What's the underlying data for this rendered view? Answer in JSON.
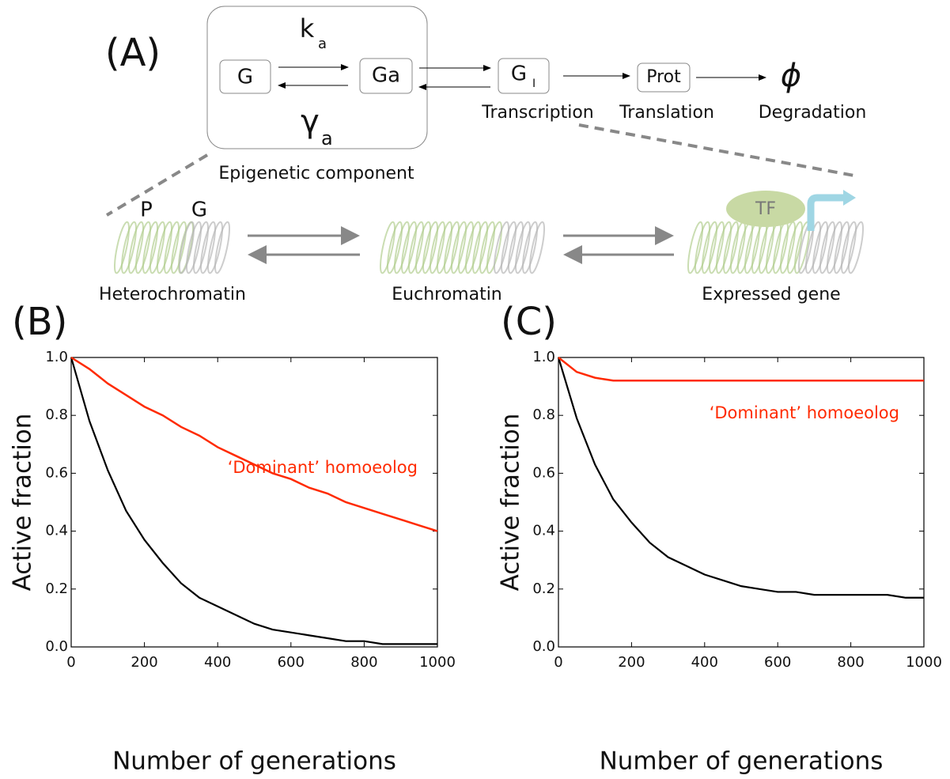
{
  "diagram": {
    "panel_label": "(A)",
    "box_label": "Epigenetic component",
    "rate_forward": {
      "symbol": "k",
      "subscript": "a"
    },
    "rate_backward": {
      "symbol": "γ",
      "subscript": "a"
    },
    "nodes": [
      {
        "label": "G"
      },
      {
        "label": "Ga"
      },
      {
        "label": "G",
        "subscript": "I"
      },
      {
        "label": "Prot"
      },
      {
        "label": "ϕ"
      }
    ],
    "steps": [
      "Transcription",
      "Translation",
      "Degradation"
    ],
    "chromatin_labels": [
      "P",
      "G"
    ],
    "tf_label": "TF",
    "states": [
      "Heterochromatin",
      "Euchromatin",
      "Expressed gene"
    ]
  },
  "chart_data": [
    {
      "type": "line",
      "panel_label": "(B)",
      "xlabel": "Number of generations",
      "ylabel": "Active fraction",
      "x": [
        0,
        50,
        100,
        150,
        200,
        250,
        300,
        350,
        400,
        450,
        500,
        550,
        600,
        650,
        700,
        750,
        800,
        850,
        900,
        950,
        1000
      ],
      "series": [
        {
          "color": "#000000",
          "values": [
            1.0,
            0.78,
            0.61,
            0.47,
            0.37,
            0.29,
            0.22,
            0.17,
            0.14,
            0.11,
            0.08,
            0.06,
            0.05,
            0.04,
            0.03,
            0.02,
            0.02,
            0.01,
            0.01,
            0.01,
            0.01
          ]
        },
        {
          "color": "#ff2a00",
          "values": [
            1.0,
            0.96,
            0.91,
            0.87,
            0.83,
            0.8,
            0.76,
            0.73,
            0.69,
            0.66,
            0.63,
            0.6,
            0.58,
            0.55,
            0.53,
            0.5,
            0.48,
            0.46,
            0.44,
            0.42,
            0.4
          ]
        }
      ],
      "annotation": {
        "text": "‘Dominant’ homoeolog",
        "color": "#ff2a00"
      },
      "xlim": [
        0,
        1000
      ],
      "xticks": [
        0,
        200,
        400,
        600,
        800,
        1000
      ],
      "ylim": [
        0,
        1
      ],
      "yticks": [
        {
          "value": 0,
          "label": "0.0"
        },
        0.2,
        0.4,
        0.6,
        0.8,
        {
          "value": 1,
          "label": "1.0"
        }
      ]
    },
    {
      "type": "line",
      "panel_label": "(C)",
      "xlabel": "Number of generations",
      "ylabel": "Active fraction",
      "x": [
        0,
        50,
        100,
        150,
        200,
        250,
        300,
        350,
        400,
        450,
        500,
        550,
        600,
        650,
        700,
        750,
        800,
        850,
        900,
        950,
        1000
      ],
      "series": [
        {
          "color": "#000000",
          "values": [
            1.0,
            0.79,
            0.63,
            0.51,
            0.43,
            0.36,
            0.31,
            0.28,
            0.25,
            0.23,
            0.21,
            0.2,
            0.19,
            0.19,
            0.18,
            0.18,
            0.18,
            0.18,
            0.18,
            0.17,
            0.17
          ]
        },
        {
          "color": "#ff2a00",
          "values": [
            1.0,
            0.95,
            0.93,
            0.92,
            0.92,
            0.92,
            0.92,
            0.92,
            0.92,
            0.92,
            0.92,
            0.92,
            0.92,
            0.92,
            0.92,
            0.92,
            0.92,
            0.92,
            0.92,
            0.92,
            0.92
          ]
        }
      ],
      "annotation": {
        "text": "‘Dominant’ homoeolog",
        "color": "#ff2a00"
      },
      "xlim": [
        0,
        1000
      ],
      "xticks": [
        0,
        200,
        400,
        600,
        800,
        1000
      ],
      "ylim": [
        0,
        1
      ],
      "yticks": [
        {
          "value": 0,
          "label": "0.0"
        },
        0.2,
        0.4,
        0.6,
        0.8,
        {
          "value": 1,
          "label": "1.0"
        }
      ]
    }
  ]
}
